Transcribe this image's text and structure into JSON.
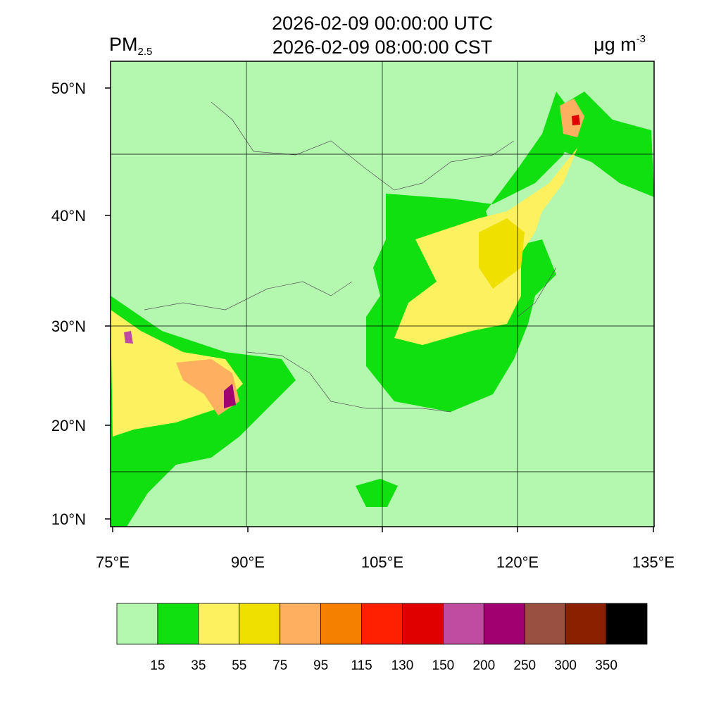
{
  "header": {
    "variable": "PM",
    "variable_subscript": "2.5",
    "title_lines": [
      "2026-02-09 00:00:00 UTC",
      "2026-02-09 08:00:00 CST"
    ],
    "units": "μg m",
    "units_superscript": "-3"
  },
  "map": {
    "lat_labels": [
      "50°N",
      "40°N",
      "30°N",
      "20°N",
      "10°N"
    ],
    "lon_labels": [
      "75°E",
      "90°E",
      "105°E",
      "120°E",
      "135°E"
    ]
  },
  "colorbar": {
    "colors": [
      "#b4f8b0",
      "#10e010",
      "#fef160",
      "#f0e000",
      "#feb060",
      "#f58000",
      "#fe2000",
      "#e00000",
      "#c04ca0",
      "#a00070",
      "#9a5040",
      "#8a2000",
      "#000000"
    ],
    "labels": [
      15,
      35,
      55,
      75,
      95,
      115,
      130,
      150,
      200,
      250,
      300,
      350
    ]
  }
}
